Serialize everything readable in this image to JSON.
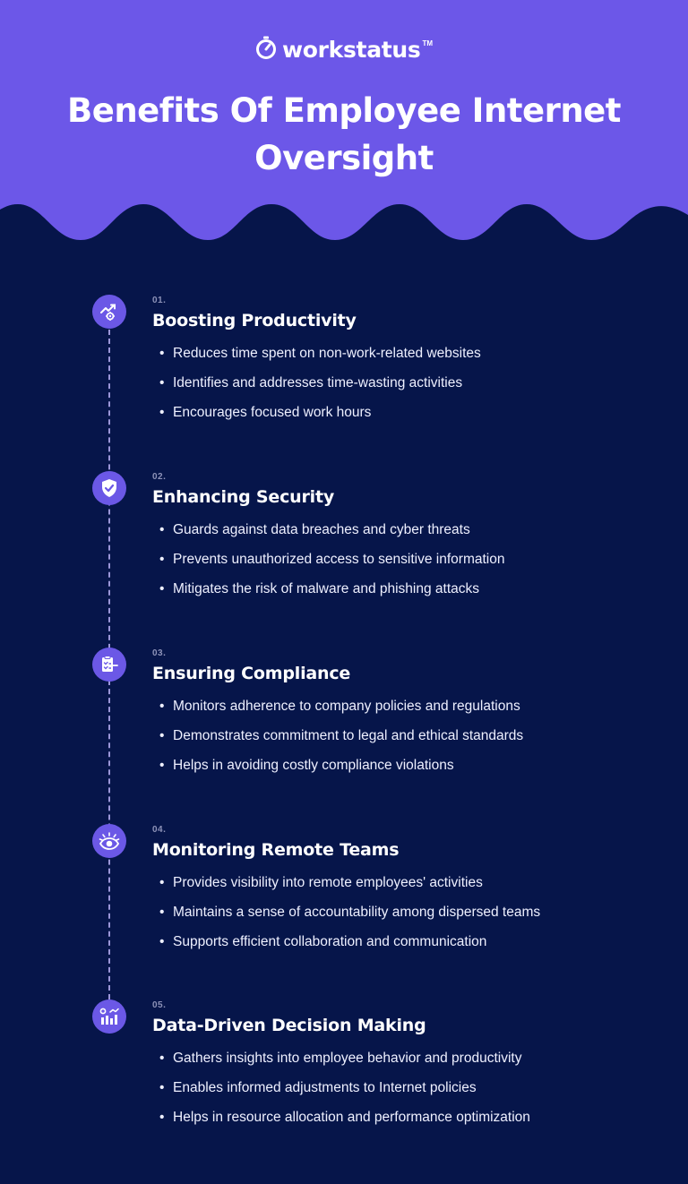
{
  "colors": {
    "hero_purple": "#6c57e8",
    "navy_background": "#06154a",
    "circle_purple": "#6b58e6",
    "dashed_line": "#9b96d8"
  },
  "brand": {
    "name": "workstatus",
    "tm": "TM",
    "icon": "stopwatch-icon"
  },
  "title": "Benefits Of Employee Internet Oversight",
  "items": [
    {
      "number": "01.",
      "heading": "Boosting Productivity",
      "icon": "productivity-growth-icon",
      "bullets": [
        "Reduces time spent on non-work-related websites",
        "Identifies and addresses time-wasting activities",
        "Encourages focused work hours"
      ]
    },
    {
      "number": "02.",
      "heading": "Enhancing Security",
      "icon": "shield-check-icon",
      "bullets": [
        "Guards against data breaches and cyber threats",
        "Prevents unauthorized access to sensitive information",
        "Mitigates the risk of malware and phishing attacks"
      ]
    },
    {
      "number": "03.",
      "heading": "Ensuring Compliance",
      "icon": "compliance-clipboard-icon",
      "bullets": [
        "Monitors adherence to company policies and regulations",
        "Demonstrates commitment to legal and ethical standards",
        "Helps in avoiding costly compliance violations"
      ]
    },
    {
      "number": "04.",
      "heading": "Monitoring Remote Teams",
      "icon": "eye-monitor-icon",
      "bullets": [
        "Provides visibility into remote employees' activities",
        "Maintains a sense of accountability among dispersed teams",
        "Supports efficient collaboration and communication"
      ]
    },
    {
      "number": "05.",
      "heading": "Data-Driven Decision Making",
      "icon": "analytics-chart-icon",
      "bullets": [
        "Gathers insights into employee behavior and productivity",
        "Enables informed adjustments to Internet policies",
        "Helps in resource allocation and performance optimization"
      ]
    }
  ]
}
